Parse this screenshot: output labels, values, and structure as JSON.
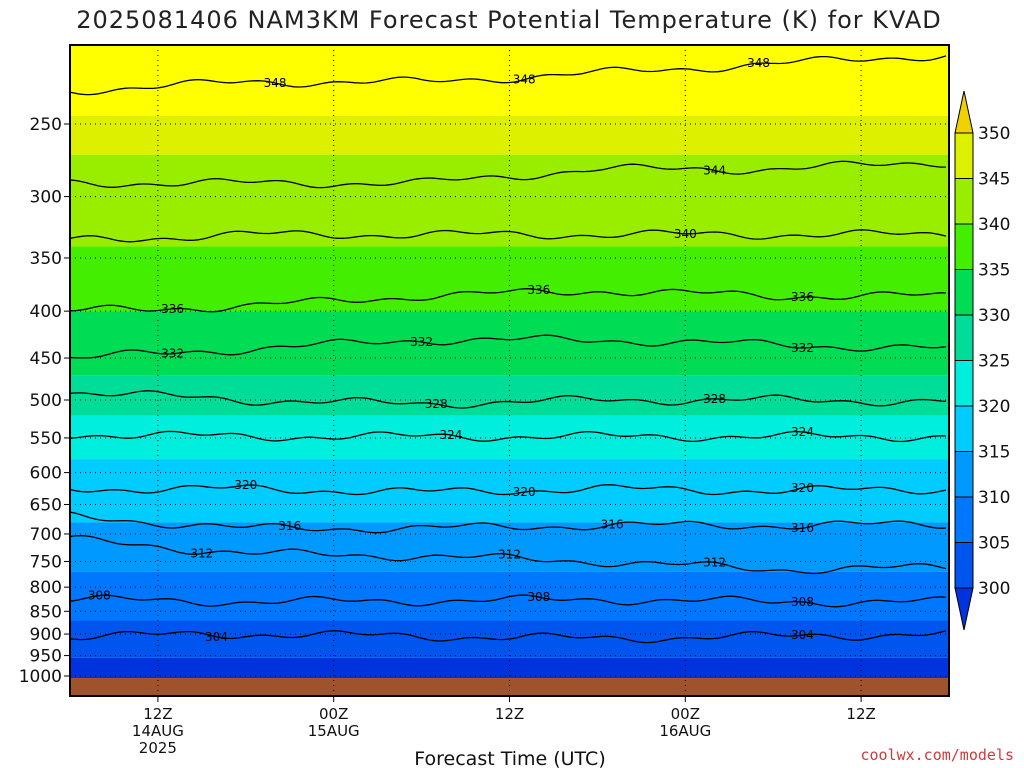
{
  "chart_data": {
    "type": "contour",
    "title": "2025081406 NAM3KM Forecast Potential Temperature (K) for KVAD",
    "xlabel": "Forecast Time (UTC)",
    "ylabel": "",
    "credit": "coolwx.com/models",
    "x_ticks": [
      {
        "hour": 12,
        "lines": [
          "12Z",
          "14AUG",
          "2025"
        ]
      },
      {
        "hour": 24,
        "lines": [
          "00Z",
          "15AUG"
        ]
      },
      {
        "hour": 36,
        "lines": [
          "12Z"
        ]
      },
      {
        "hour": 48,
        "lines": [
          "00Z",
          "16AUG"
        ]
      },
      {
        "hour": 60,
        "lines": [
          "12Z"
        ]
      }
    ],
    "x_range_hours": [
      6,
      66
    ],
    "y_axis": "pressure (hPa), log scale, inverted",
    "y_range": [
      1000,
      200
    ],
    "y_ticks": [
      250,
      300,
      350,
      400,
      450,
      500,
      550,
      600,
      650,
      700,
      750,
      800,
      850,
      900,
      950,
      1000
    ],
    "colorbar": {
      "levels": [
        300,
        305,
        310,
        315,
        320,
        325,
        330,
        335,
        340,
        345,
        350
      ],
      "colors": [
        "#0033dd",
        "#0055ee",
        "#0077ff",
        "#0099ff",
        "#00ccff",
        "#00eedd",
        "#00dd99",
        "#00dd55",
        "#44ee00",
        "#99ee00",
        "#ddf000",
        "#f0d000"
      ],
      "extend": "both"
    },
    "contour_lines": [
      {
        "theta": 304,
        "y_pressure": [
          905,
          900,
          905,
          910,
          905,
          900
        ],
        "label_hours": [
          16,
          56
        ]
      },
      {
        "theta": 308,
        "y_pressure": [
          825,
          830,
          828,
          825,
          830,
          830
        ],
        "label_hours": [
          8,
          38,
          56
        ]
      },
      {
        "theta": 312,
        "y_pressure": [
          710,
          735,
          740,
          750,
          765,
          762
        ],
        "label_hours": [
          15,
          36,
          50
        ]
      },
      {
        "theta": 316,
        "y_pressure": [
          670,
          690,
          690,
          685,
          685,
          683
        ],
        "label_hours": [
          21,
          43,
          56
        ]
      },
      {
        "theta": 320,
        "y_pressure": [
          625,
          625,
          630,
          625,
          628,
          625
        ],
        "label_hours": [
          18,
          37,
          56
        ]
      },
      {
        "theta": 324,
        "y_pressure": [
          545,
          548,
          548,
          548,
          548,
          548
        ],
        "label_hours": [
          32,
          56
        ]
      },
      {
        "theta": 328,
        "y_pressure": [
          490,
          500,
          505,
          500,
          500,
          502
        ],
        "label_hours": [
          31,
          50
        ]
      },
      {
        "theta": 332,
        "y_pressure": [
          450,
          440,
          430,
          430,
          435,
          440
        ],
        "label_hours": [
          13,
          30,
          56
        ]
      },
      {
        "theta": 336,
        "y_pressure": [
          400,
          395,
          385,
          380,
          385,
          385
        ],
        "label_hours": [
          13,
          38,
          56
        ]
      },
      {
        "theta": 340,
        "y_pressure": [
          335,
          330,
          330,
          330,
          330,
          330
        ],
        "label_hours": [
          48
        ]
      },
      {
        "theta": 344,
        "y_pressure": [
          290,
          290,
          290,
          280,
          280,
          275
        ],
        "label_hours": [
          50
        ]
      },
      {
        "theta": 348,
        "y_pressure": [
          230,
          225,
          225,
          220,
          215,
          210
        ],
        "label_hours": [
          20,
          37,
          53
        ]
      }
    ],
    "grid": true
  }
}
